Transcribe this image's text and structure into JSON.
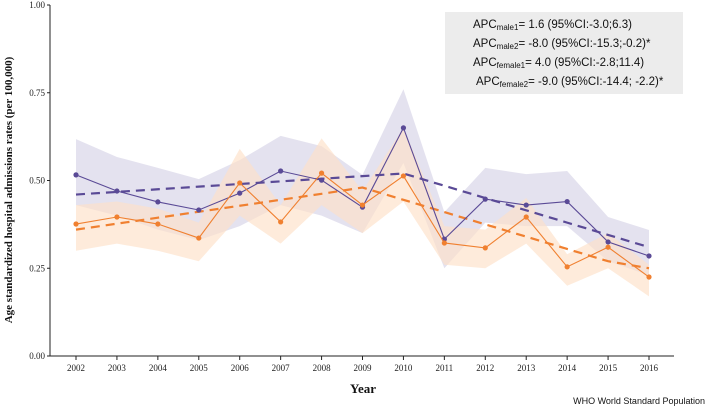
{
  "chart_data": {
    "type": "line",
    "title": "",
    "xlabel": "Year",
    "ylabel": "Age standardized hospital admissions rates (per 100,000)",
    "ylim": [
      0,
      1
    ],
    "yticks": [
      "0.00",
      "0.25",
      "0.50",
      "0.75",
      "1.00"
    ],
    "yticks_values": [
      0,
      0.25,
      0.5,
      0.75,
      1
    ],
    "x": [
      2002,
      2003,
      2004,
      2005,
      2006,
      2007,
      2008,
      2009,
      2010,
      2011,
      2012,
      2013,
      2014,
      2015,
      2016
    ],
    "series": [
      {
        "name": "male",
        "color": "#5a4a96",
        "band_color": "#d9d6e8",
        "values": [
          0.516,
          0.47,
          0.439,
          0.416,
          0.464,
          0.527,
          0.501,
          0.424,
          0.65,
          0.333,
          0.447,
          0.43,
          0.44,
          0.325,
          0.285
        ],
        "upper": [
          0.618,
          0.567,
          0.536,
          0.504,
          0.558,
          0.627,
          0.598,
          0.516,
          0.76,
          0.41,
          0.536,
          0.518,
          0.527,
          0.396,
          0.359
        ],
        "lower": [
          0.43,
          0.4,
          0.36,
          0.33,
          0.37,
          0.43,
          0.4,
          0.35,
          0.55,
          0.25,
          0.38,
          0.37,
          0.37,
          0.27,
          0.23
        ],
        "trend": [
          0.46,
          0.4675,
          0.475,
          0.4825,
          0.49,
          0.4975,
          0.505,
          0.5125,
          0.52,
          0.485,
          0.45,
          0.415,
          0.38,
          0.345,
          0.31
        ]
      },
      {
        "name": "female",
        "color": "#f08030",
        "band_color": "#fde0c8",
        "values": [
          0.376,
          0.396,
          0.376,
          0.336,
          0.493,
          0.382,
          0.521,
          0.43,
          0.513,
          0.322,
          0.308,
          0.396,
          0.254,
          0.31,
          0.225
        ],
        "upper": [
          0.43,
          0.44,
          0.42,
          0.38,
          0.59,
          0.43,
          0.62,
          0.47,
          0.65,
          0.37,
          0.36,
          0.45,
          0.29,
          0.35,
          0.26
        ],
        "lower": [
          0.3,
          0.32,
          0.3,
          0.27,
          0.4,
          0.32,
          0.43,
          0.35,
          0.44,
          0.26,
          0.25,
          0.32,
          0.2,
          0.25,
          0.17
        ],
        "trend": [
          0.36,
          0.377,
          0.394,
          0.411,
          0.428,
          0.445,
          0.462,
          0.48,
          0.445,
          0.41,
          0.375,
          0.34,
          0.305,
          0.27,
          0.25
        ]
      }
    ],
    "legend_placement": "top-right",
    "annotations": [
      {
        "base": "APC",
        "sub": "male1",
        "text": "= 1.6 (95%CI:-3.0;6.3)"
      },
      {
        "base": "APC",
        "sub": "male2",
        "text": "= -8.0 (95%CI:-15.3;-0.2)*"
      },
      {
        "base": "APC",
        "sub": "female1",
        "text": "= 4.0 (95%CI:-2.8;11.4)"
      },
      {
        "base": "APC",
        "sub": "female2",
        "text": "= -9.0 (95%CI:-14.4; -2.2)*"
      }
    ],
    "footnote": "WHO World Standard Population"
  }
}
